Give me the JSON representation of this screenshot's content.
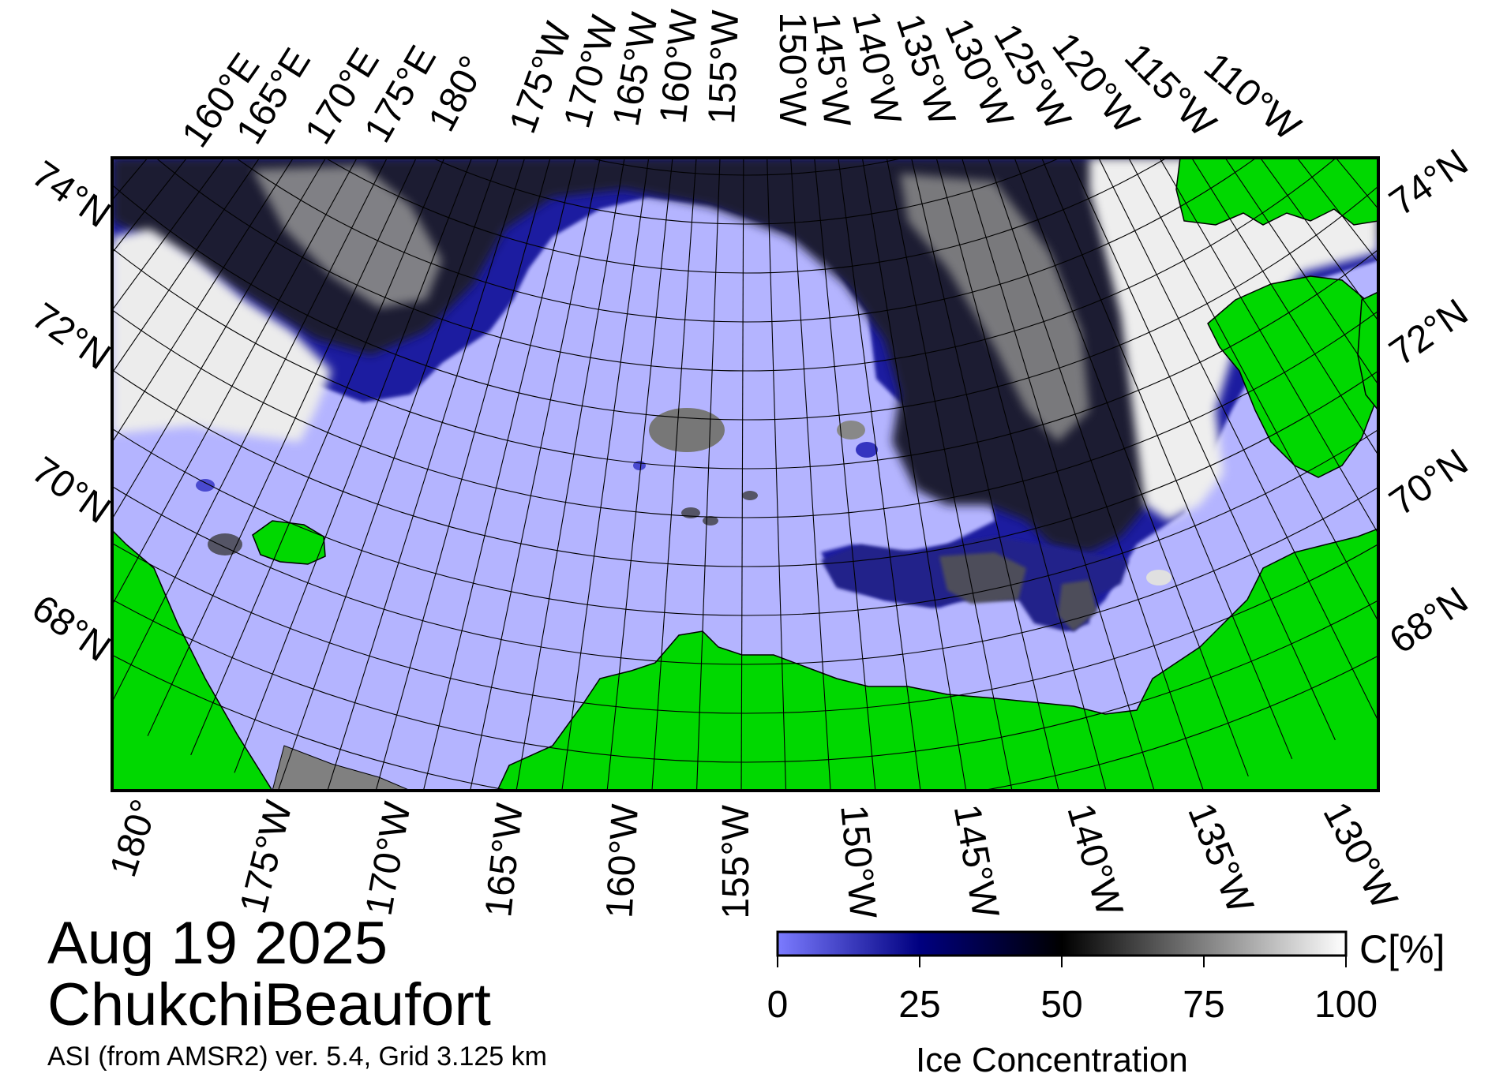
{
  "title": {
    "date": "Aug 19 2025",
    "region": "ChukchiBeaufort",
    "subtitle": "ASI (from AMSR2) ver. 5.4,  Grid 3.125 km"
  },
  "colorbar": {
    "label": "Ice Concentration",
    "unit": "C[%]",
    "ticks": [
      "0",
      "25",
      "50",
      "75",
      "100"
    ],
    "range": [
      0,
      100
    ],
    "colors": [
      "#7b7bff",
      "#000080",
      "#000000",
      "#808080",
      "#ffffff"
    ]
  },
  "map": {
    "colors": {
      "land": "#00d800",
      "open_water": "#b4b4ff",
      "ice_high": "#ffffff",
      "ice_mid": "#808080",
      "ice_low": "#000080",
      "no_data": "#808080",
      "grid": "#000000"
    },
    "top_labels": [
      "160°E",
      "165°E",
      "170°E",
      "175°E",
      "180°",
      "175°W",
      "170°W",
      "165°W",
      "160°W",
      "155°W",
      "150°W",
      "145°W",
      "140°W",
      "135°W",
      "130°W",
      "125°W",
      "120°W",
      "115°W",
      "110°W"
    ],
    "bottom_labels": [
      "180°",
      "175°W",
      "170°W",
      "165°W",
      "160°W",
      "155°W",
      "150°W",
      "145°W",
      "140°W",
      "135°W",
      "130°W"
    ],
    "left_labels": [
      "74°N",
      "72°N",
      "70°N",
      "68°N"
    ],
    "right_labels": [
      "74°N",
      "72°N",
      "70°N",
      "68°N"
    ]
  }
}
